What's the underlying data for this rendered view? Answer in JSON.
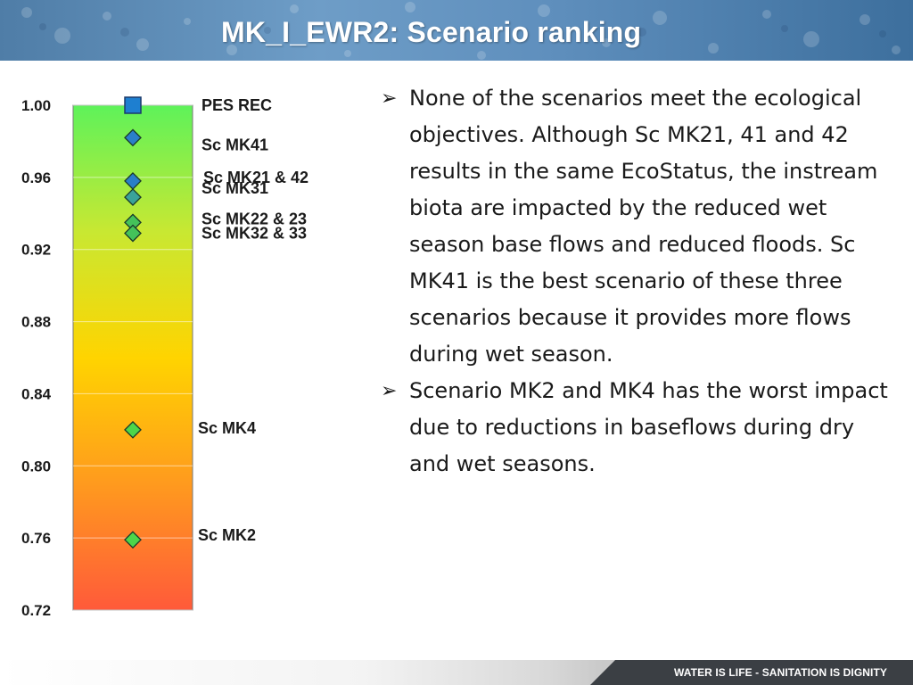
{
  "header": {
    "title": "MK_I_EWR2:  Scenario ranking"
  },
  "footer": {
    "tagline": "WATER IS LIFE - SANITATION IS DIGNITY"
  },
  "chart_data": {
    "type": "scatter",
    "title": "",
    "xlabel": "",
    "ylabel": "",
    "ylim": [
      0.72,
      1.0
    ],
    "yticks": [
      "1.00",
      "0.96",
      "0.92",
      "0.88",
      "0.84",
      "0.80",
      "0.76",
      "0.72"
    ],
    "ytick_values": [
      1.0,
      0.96,
      0.92,
      0.88,
      0.84,
      0.8,
      0.76,
      0.72
    ],
    "background": "vertical gradient green (top) to yellow to red (bottom)",
    "grid": true,
    "points": [
      {
        "label": "PES REC",
        "value": 1.0,
        "marker": "square",
        "color": "#1e7fd0"
      },
      {
        "label": "Sc MK41",
        "value": 0.982,
        "marker": "diamond",
        "color": "#2a7fc9"
      },
      {
        "label": "Sc MK21 & 42",
        "value": 0.958,
        "marker": "diamond",
        "color": "#2a7fc9"
      },
      {
        "label": "Sc MK31",
        "value": 0.949,
        "marker": "diamond",
        "color": "#3aa39a"
      },
      {
        "label": "Sc MK22 & 23",
        "value": 0.935,
        "marker": "diamond",
        "color": "#44c25a"
      },
      {
        "label": "Sc MK32 & 33",
        "value": 0.929,
        "marker": "diamond",
        "color": "#44c25a"
      },
      {
        "label": "Sc MK4",
        "value": 0.82,
        "marker": "diamond",
        "color": "#4cd64a"
      },
      {
        "label": "Sc MK2",
        "value": 0.759,
        "marker": "diamond",
        "color": "#4cd64a"
      }
    ]
  },
  "bullets": [
    {
      "text": "None of the scenarios meet the ecological objectives.  Although Sc MK21, 41 and 42 results in the same EcoStatus, the instream biota are impacted by the reduced wet season base flows and reduced floods.  Sc MK41 is the best scenario of these three scenarios because it provides more flows during wet season."
    },
    {
      "text": "Scenario MK2 and MK4 has the worst impact due to reductions in baseflows during dry and wet seasons."
    }
  ],
  "colors": {
    "title_bar": "#5f8fbd",
    "footer_dark": "#3b3f44",
    "gradient_top": "#5ef25a",
    "gradient_mid": "#ffd400",
    "gradient_bottom": "#ff5a3a"
  }
}
